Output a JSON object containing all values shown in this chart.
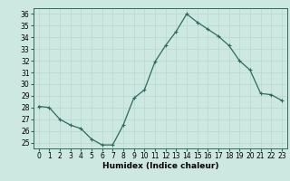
{
  "x": [
    0,
    1,
    2,
    3,
    4,
    5,
    6,
    7,
    8,
    9,
    10,
    11,
    12,
    13,
    14,
    15,
    16,
    17,
    18,
    19,
    20,
    21,
    22,
    23
  ],
  "y": [
    28.1,
    28.0,
    27.0,
    26.5,
    26.2,
    25.3,
    24.8,
    24.8,
    26.5,
    28.8,
    29.5,
    31.9,
    33.3,
    34.5,
    36.0,
    35.3,
    34.7,
    34.1,
    33.3,
    32.0,
    31.2,
    29.2,
    29.1,
    28.6
  ],
  "line_color": "#2e6b5e",
  "bg_color": "#cce8e0",
  "grid_color": "#b8d8d0",
  "xlabel": "Humidex (Indice chaleur)",
  "ylim": [
    24.5,
    36.5
  ],
  "xlim": [
    -0.5,
    23.5
  ],
  "yticks": [
    25,
    26,
    27,
    28,
    29,
    30,
    31,
    32,
    33,
    34,
    35,
    36
  ],
  "xticks": [
    0,
    1,
    2,
    3,
    4,
    5,
    6,
    7,
    8,
    9,
    10,
    11,
    12,
    13,
    14,
    15,
    16,
    17,
    18,
    19,
    20,
    21,
    22,
    23
  ],
  "tick_fontsize": 5.5,
  "xlabel_fontsize": 6.5,
  "marker": "+",
  "markersize": 3.5,
  "linewidth": 0.9
}
